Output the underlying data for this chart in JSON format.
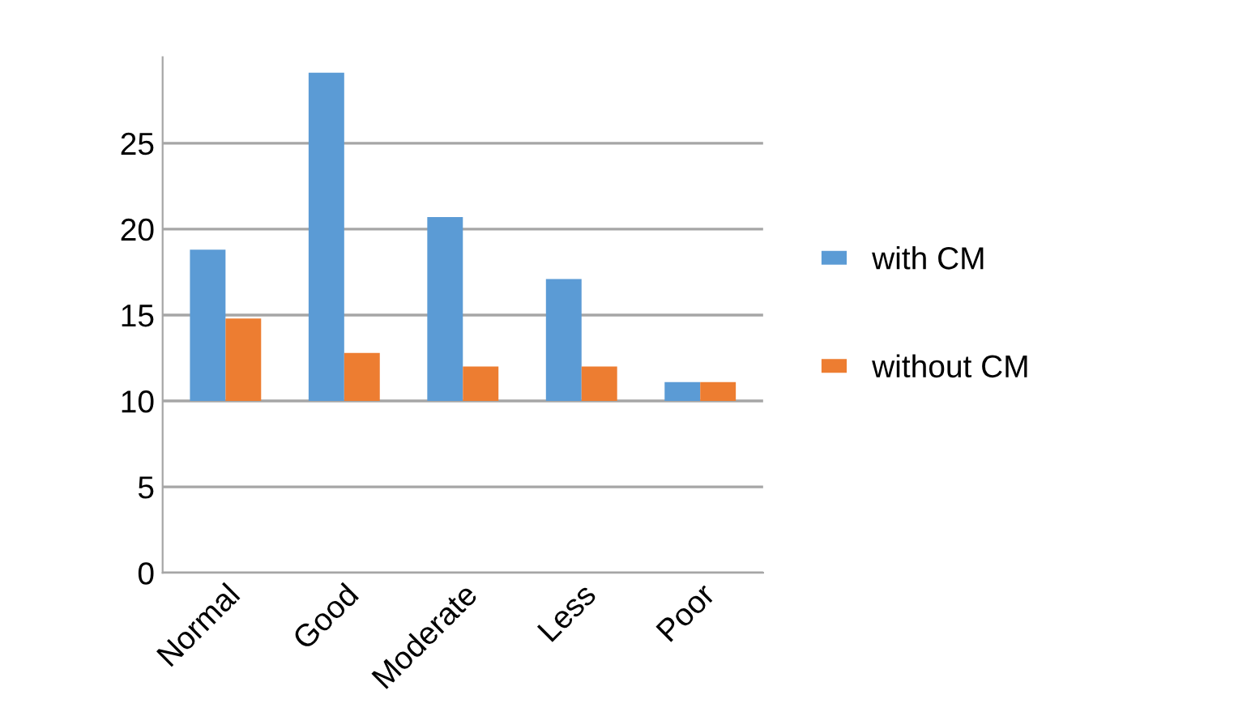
{
  "chart_data": {
    "type": "bar",
    "categories": [
      "Normal",
      "Good",
      "Moderate",
      "Less",
      "Poor"
    ],
    "series": [
      {
        "name": "with CM",
        "color": "#5b9bd5",
        "base": [
          10,
          10,
          10,
          10,
          10
        ],
        "values": [
          8.8,
          19.1,
          10.7,
          7.1,
          1.1
        ]
      },
      {
        "name": "without CM",
        "color": "#ed7d31",
        "base": [
          10,
          10,
          10,
          10,
          10
        ],
        "values": [
          4.8,
          2.8,
          2.0,
          2.0,
          1.1
        ]
      }
    ],
    "ylim": [
      0,
      30
    ],
    "yticks": [
      0,
      5,
      10,
      15,
      20,
      25
    ],
    "grid": "y",
    "legend": "right"
  }
}
